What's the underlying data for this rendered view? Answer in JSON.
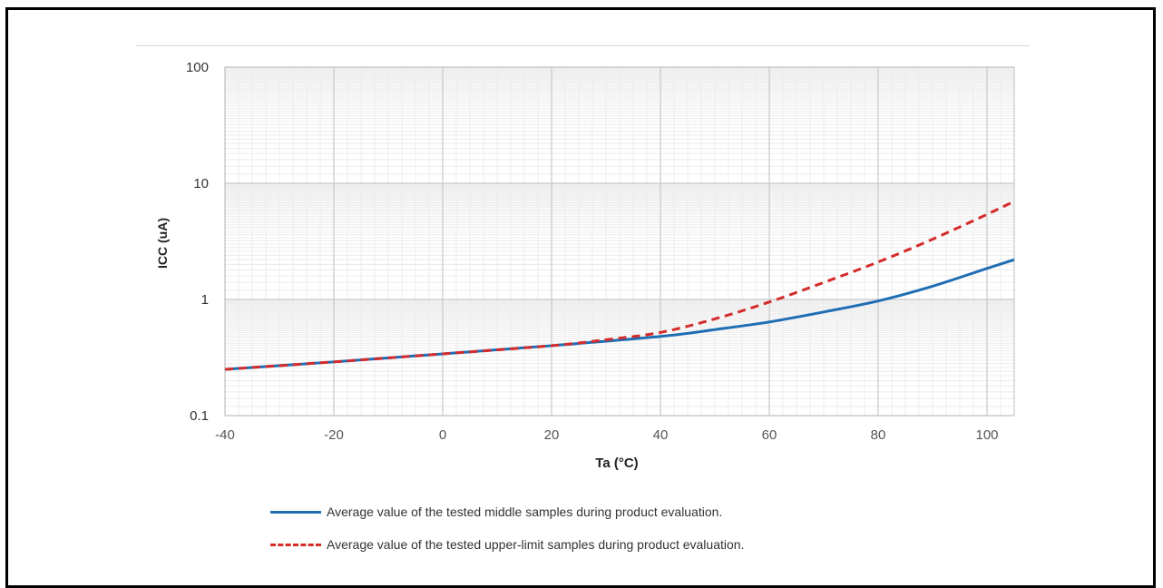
{
  "chart_data": {
    "type": "line",
    "xlabel": "Ta (°C)",
    "ylabel": "ICC (uA)",
    "x_scale": "linear",
    "y_scale": "log",
    "xlim": [
      -40,
      105
    ],
    "ylim": [
      0.1,
      100
    ],
    "x_ticks": [
      "-40",
      "-20",
      "0",
      "20",
      "40",
      "60",
      "80",
      "100"
    ],
    "y_ticks": [
      "0.1",
      "1",
      "10",
      "100"
    ],
    "grid": true,
    "legend_position": "bottom",
    "series": [
      {
        "name": "Average value of the tested middle samples during product evaluation.",
        "color": "#1f6db3",
        "style": "solid",
        "x": [
          -40,
          -20,
          0,
          20,
          40,
          50,
          60,
          70,
          80,
          90,
          100,
          105
        ],
        "y": [
          0.25,
          0.29,
          0.34,
          0.4,
          0.48,
          0.55,
          0.64,
          0.78,
          0.97,
          1.3,
          1.85,
          2.2
        ]
      },
      {
        "name": "Average value of the tested upper-limit samples during product evaluation.",
        "color": "#d52b2b",
        "style": "dashed",
        "x": [
          -40,
          -20,
          0,
          20,
          30,
          40,
          50,
          60,
          70,
          80,
          90,
          100,
          105
        ],
        "y": [
          0.25,
          0.29,
          0.34,
          0.4,
          0.45,
          0.52,
          0.68,
          0.95,
          1.4,
          2.1,
          3.3,
          5.4,
          7.0
        ]
      }
    ]
  }
}
